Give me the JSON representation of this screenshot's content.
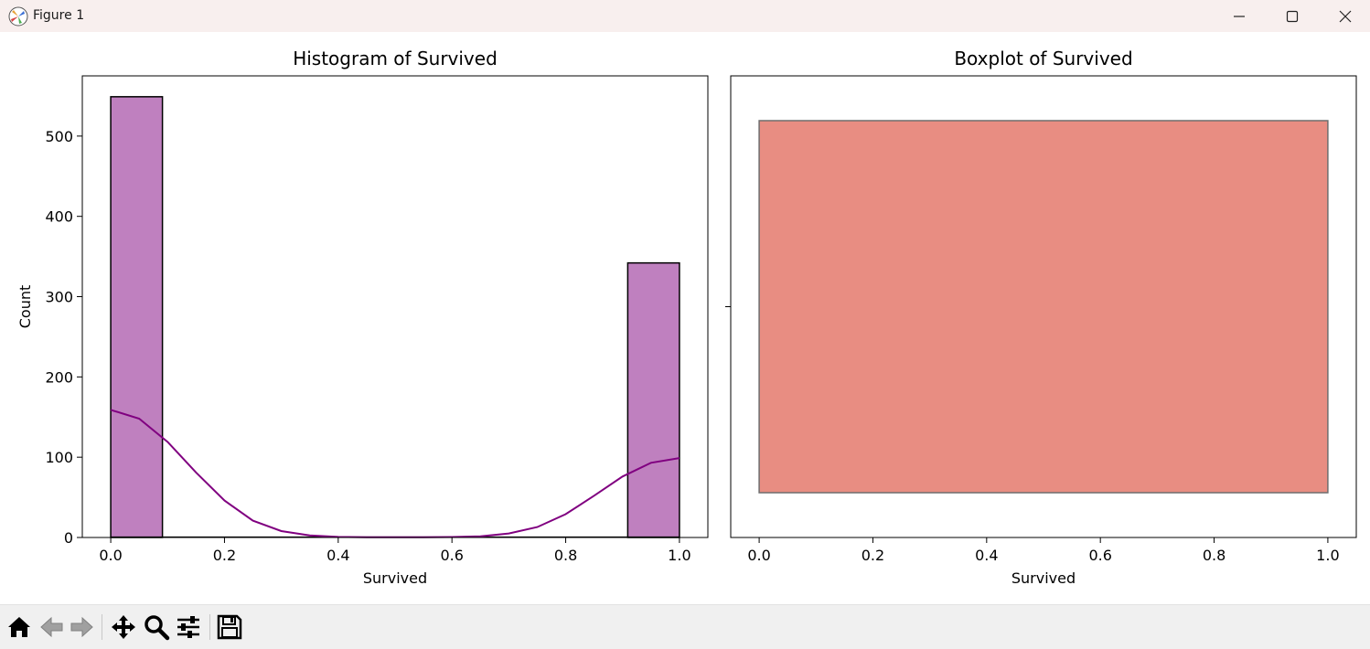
{
  "window": {
    "title": "Figure 1"
  },
  "icons": {
    "app": "matplotlib-icon",
    "minimize": "minimize-icon",
    "maximize": "maximize-icon",
    "close": "close-icon",
    "home": "home-icon",
    "back": "back-arrow-icon",
    "forward": "forward-arrow-icon",
    "pan": "pan-move-icon",
    "zoom": "zoom-magnifier-icon",
    "configure": "configure-subplots-icon",
    "save": "save-floppy-icon"
  },
  "chart_data": [
    {
      "type": "bar",
      "title": "Histogram of Survived",
      "xlabel": "Survived",
      "ylabel": "Count",
      "xlim": [
        -0.05,
        1.05
      ],
      "ylim": [
        0,
        575
      ],
      "xticks": [
        "0.0",
        "0.2",
        "0.4",
        "0.6",
        "0.8",
        "1.0"
      ],
      "yticks": [
        "0",
        "100",
        "200",
        "300",
        "400",
        "500"
      ],
      "bins": [
        {
          "x0": 0.0,
          "x1": 0.0909,
          "count": 549
        },
        {
          "x0": 0.9091,
          "x1": 1.0,
          "count": 342
        }
      ],
      "bar_color": "#bf80bf",
      "kde": {
        "color": "#800080",
        "x": [
          0,
          0.05,
          0.1,
          0.15,
          0.2,
          0.25,
          0.3,
          0.35,
          0.4,
          0.45,
          0.5,
          0.55,
          0.6,
          0.65,
          0.7,
          0.75,
          0.8,
          0.85,
          0.9,
          0.95,
          1.0
        ],
        "y": [
          159,
          148,
          119,
          81,
          46,
          21,
          8,
          2.5,
          0.7,
          0.2,
          0.2,
          0.2,
          0.6,
          1.5,
          5,
          13,
          29,
          52,
          76,
          93,
          99
        ]
      },
      "grid": false
    },
    {
      "type": "boxplot",
      "title": "Boxplot of Survived",
      "xlabel": "Survived",
      "xlim": [
        -0.05,
        1.05
      ],
      "xticks": [
        "0.0",
        "0.2",
        "0.4",
        "0.6",
        "0.8",
        "1.0"
      ],
      "box": {
        "q1": 0,
        "median": 0,
        "q3": 1,
        "whisker_low": 0,
        "whisker_high": 1
      },
      "box_color": "#e88d82",
      "edge_color": "#6e6e6e",
      "grid": false
    }
  ]
}
